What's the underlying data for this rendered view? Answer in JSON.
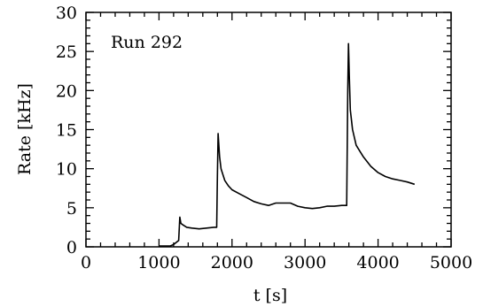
{
  "chart_data": {
    "type": "line",
    "title": "",
    "annotation": "Run 292",
    "xlabel": "t [s]",
    "ylabel": "Rate [kHz]",
    "xlim": [
      0,
      5000
    ],
    "ylim": [
      0,
      30
    ],
    "xticks": [
      "0",
      "1000",
      "2000",
      "3000",
      "4000",
      "5000"
    ],
    "yticks": [
      "0",
      "5",
      "10",
      "15",
      "20",
      "25",
      "30"
    ],
    "grid": false,
    "series": [
      {
        "color": "#000000",
        "x": [
          1000,
          1150,
          1200,
          1240,
          1270,
          1285,
          1300,
          1330,
          1380,
          1450,
          1550,
          1650,
          1750,
          1790,
          1800,
          1810,
          1830,
          1850,
          1900,
          1950,
          2000,
          2100,
          2200,
          2300,
          2400,
          2500,
          2600,
          2700,
          2800,
          2900,
          3000,
          3100,
          3200,
          3300,
          3400,
          3500,
          3570,
          3585,
          3595,
          3605,
          3620,
          3650,
          3700,
          3800,
          3900,
          4000,
          4100,
          4200,
          4300,
          4400,
          4500
        ],
        "y": [
          0.1,
          0.1,
          0.3,
          0.6,
          0.8,
          3.8,
          3.0,
          2.8,
          2.5,
          2.4,
          2.3,
          2.4,
          2.5,
          2.5,
          9.0,
          14.5,
          11.5,
          10.0,
          8.5,
          7.8,
          7.3,
          6.8,
          6.3,
          5.8,
          5.5,
          5.3,
          5.6,
          5.6,
          5.6,
          5.2,
          5.0,
          4.9,
          5.0,
          5.2,
          5.2,
          5.3,
          5.3,
          20.0,
          26.0,
          22.0,
          17.5,
          15.0,
          13.0,
          11.5,
          10.3,
          9.5,
          9.0,
          8.7,
          8.5,
          8.3,
          8.0
        ]
      }
    ]
  }
}
